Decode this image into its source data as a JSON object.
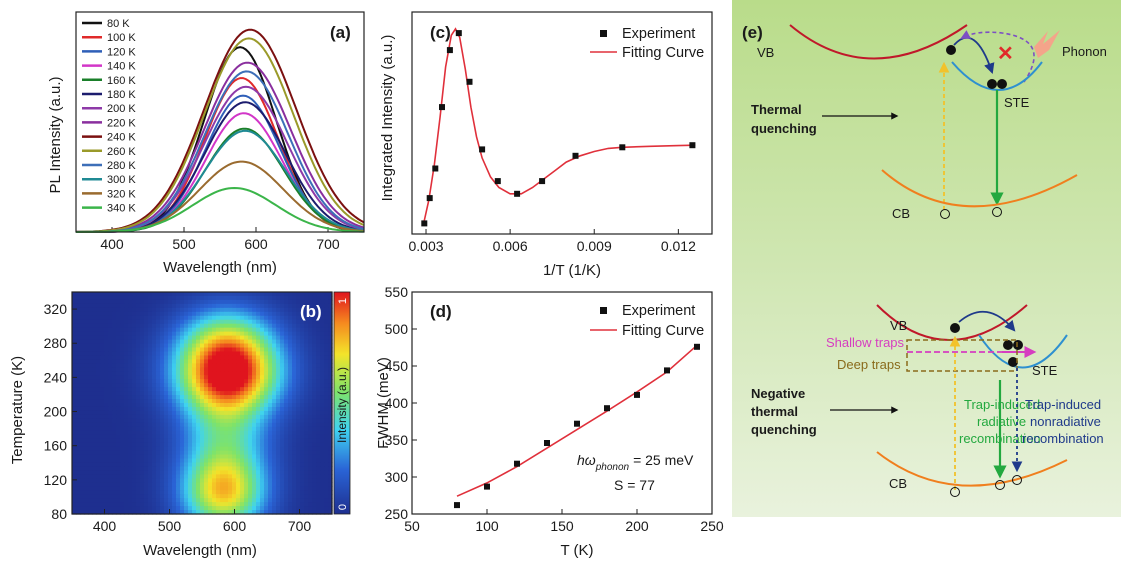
{
  "colors": {
    "fit": "#e0303b",
    "vb": "#c0182a",
    "cb": "#f07f1e",
    "ste": "#2e90d0",
    "green_arrow": "#23a83f",
    "yellow_arrow": "#f2c22b",
    "navy_arrow": "#1f3a8a",
    "purple_arrow": "#7c4fc4",
    "shallow": "#d63ec0",
    "deep": "#8a6b1b"
  },
  "panel_a": {
    "tag": "(a)",
    "xlabel": "Wavelength (nm)",
    "ylabel": "PL Intensity (a.u.)",
    "xticks": [
      "400",
      "500",
      "600",
      "700"
    ]
  },
  "panel_b": {
    "tag": "(b)",
    "xlabel": "Wavelength (nm)",
    "ylabel": "Temperature (K)",
    "xticks": [
      "400",
      "500",
      "600",
      "700"
    ],
    "yticks": [
      "80",
      "120",
      "160",
      "200",
      "240",
      "280",
      "320"
    ],
    "colorbar_label": "Intensity (a.u.)",
    "colorbar_ticks": [
      "1",
      "0"
    ]
  },
  "panel_c": {
    "tag": "(c)",
    "xlabel": "1/T (1/K)",
    "ylabel": "Integrated Intensity (a.u.)",
    "xticks": [
      "0.003",
      "0.006",
      "0.009",
      "0.012"
    ],
    "legend_points": "Experiment",
    "legend_line": "Fitting Curve"
  },
  "panel_d": {
    "tag": "(d)",
    "xlabel": "T (K)",
    "ylabel": "FWHM (meV)",
    "xticks": [
      "50",
      "100",
      "150",
      "200",
      "250"
    ],
    "yticks": [
      "250",
      "300",
      "350",
      "400",
      "450",
      "500",
      "550"
    ],
    "legend_points": "Experiment",
    "legend_line": "Fitting Curve",
    "annot_symbol": "hω",
    "annot_sub": "phonon",
    "annot_value": "=  25 meV",
    "annot_s": "S = 77"
  },
  "panel_e": {
    "tag": "(e)",
    "top": {
      "vb": "VB",
      "ste": "STE",
      "cb": "CB",
      "phonon": "Phonon",
      "label_line1": "Thermal",
      "label_line2": "quenching"
    },
    "bottom": {
      "vb": "VB",
      "ste": "STE",
      "cb": "CB",
      "shallow": "Shallow traps",
      "deep": "Deep traps",
      "label_line1": "Negative",
      "label_line2": "thermal",
      "label_line3": "quenching",
      "rad1": "Trap-induced",
      "rad2": "radiative",
      "rad3": "recombination",
      "nonrad1": "Trap-induced",
      "nonrad2": "nonradiative",
      "nonrad3": "recombination"
    }
  },
  "chart_data": [
    {
      "panel": "a",
      "type": "line",
      "title": "",
      "xlabel": "Wavelength (nm)",
      "ylabel": "PL Intensity (a.u.)",
      "xlim": [
        350,
        750
      ],
      "legend_position": "top-left",
      "series": [
        {
          "name": "80 K",
          "color": "#111111",
          "center": 578,
          "width": 50,
          "peak": 0.84
        },
        {
          "name": "100 K",
          "color": "#e02a2a",
          "center": 580,
          "width": 51,
          "peak": 0.7
        },
        {
          "name": "120 K",
          "color": "#2f5fb8",
          "center": 582,
          "width": 52,
          "peak": 0.62
        },
        {
          "name": "140 K",
          "color": "#d236c8",
          "center": 583,
          "width": 53,
          "peak": 0.54
        },
        {
          "name": "160 K",
          "color": "#1a7f2a",
          "center": 584,
          "width": 54,
          "peak": 0.47
        },
        {
          "name": "180 K",
          "color": "#1c1c6e",
          "center": 585,
          "width": 56,
          "peak": 0.59
        },
        {
          "name": "200 K",
          "color": "#8e3aa8",
          "center": 586,
          "width": 58,
          "peak": 0.66
        },
        {
          "name": "220 K",
          "color": "#8a2f9e",
          "center": 588,
          "width": 60,
          "peak": 0.77
        },
        {
          "name": "240 K",
          "color": "#7b1010",
          "center": 592,
          "width": 64,
          "peak": 0.92
        },
        {
          "name": "260 K",
          "color": "#9a9a2a",
          "center": 590,
          "width": 62,
          "peak": 0.88
        },
        {
          "name": "280 K",
          "color": "#3d6fb8",
          "center": 587,
          "width": 58,
          "peak": 0.73
        },
        {
          "name": "300 K",
          "color": "#1f8a94",
          "center": 585,
          "width": 56,
          "peak": 0.46
        },
        {
          "name": "320 K",
          "color": "#9a6b2f",
          "center": 580,
          "width": 58,
          "peak": 0.32
        },
        {
          "name": "340 K",
          "color": "#3bb54a",
          "center": 570,
          "width": 58,
          "peak": 0.2
        }
      ]
    },
    {
      "panel": "b",
      "type": "heatmap",
      "xlabel": "Wavelength (nm)",
      "ylabel": "Temperature (K)",
      "xlim": [
        350,
        750
      ],
      "ylim": [
        80,
        340
      ],
      "colorbar_range": [
        0,
        1
      ],
      "blobs": [
        {
          "x": 590,
          "y": 245,
          "sx": 55,
          "sy": 32,
          "amp": 1.0
        },
        {
          "x": 583,
          "y": 105,
          "sx": 45,
          "sy": 32,
          "amp": 0.72
        },
        {
          "x": 588,
          "y": 290,
          "sx": 52,
          "sy": 28,
          "amp": 0.35
        },
        {
          "x": 586,
          "y": 175,
          "sx": 48,
          "sy": 40,
          "amp": 0.38
        }
      ]
    },
    {
      "panel": "c",
      "type": "scatter",
      "xlabel": "1/T (1/K)",
      "ylabel": "Integrated Intensity (a.u.)",
      "xlim": [
        0.0025,
        0.0132
      ],
      "ylim": [
        0,
        1.05
      ],
      "legend_position": "top-right",
      "series": [
        {
          "name": "Experiment",
          "x": [
            0.00294,
            0.00313,
            0.00333,
            0.00357,
            0.00385,
            0.00417,
            0.00455,
            0.005,
            0.00556,
            0.00625,
            0.00714,
            0.00833,
            0.01,
            0.0125
          ],
          "y": [
            0.05,
            0.17,
            0.31,
            0.6,
            0.87,
            0.95,
            0.72,
            0.4,
            0.25,
            0.19,
            0.25,
            0.37,
            0.41,
            0.42
          ]
        },
        {
          "name": "Fitting Curve",
          "x": [
            0.0029,
            0.0031,
            0.0033,
            0.0035,
            0.0037,
            0.0039,
            0.00405,
            0.0042,
            0.0044,
            0.0046,
            0.0048,
            0.005,
            0.0053,
            0.0056,
            0.006,
            0.0064,
            0.0068,
            0.0072,
            0.0076,
            0.008,
            0.0085,
            0.009,
            0.0095,
            0.01,
            0.011,
            0.012,
            0.0126
          ],
          "y": [
            0.04,
            0.16,
            0.33,
            0.55,
            0.79,
            0.94,
            0.97,
            0.93,
            0.78,
            0.6,
            0.46,
            0.36,
            0.27,
            0.22,
            0.19,
            0.19,
            0.22,
            0.26,
            0.3,
            0.34,
            0.37,
            0.39,
            0.405,
            0.41,
            0.415,
            0.418,
            0.42
          ]
        }
      ]
    },
    {
      "panel": "d",
      "type": "scatter",
      "xlabel": "T (K)",
      "ylabel": "FWHM (meV)",
      "xlim": [
        50,
        250
      ],
      "ylim": [
        250,
        550
      ],
      "legend_position": "top-right",
      "series": [
        {
          "name": "Experiment",
          "x": [
            80,
            100,
            120,
            140,
            160,
            180,
            200,
            220,
            240
          ],
          "y": [
            262,
            287,
            318,
            346,
            372,
            393,
            411,
            444,
            476
          ]
        },
        {
          "name": "Fitting Curve",
          "x": [
            80,
            100,
            120,
            140,
            160,
            180,
            200,
            220,
            240
          ],
          "y": [
            274,
            292,
            314,
            339,
            364,
            389,
            415,
            442,
            478
          ]
        }
      ]
    }
  ]
}
